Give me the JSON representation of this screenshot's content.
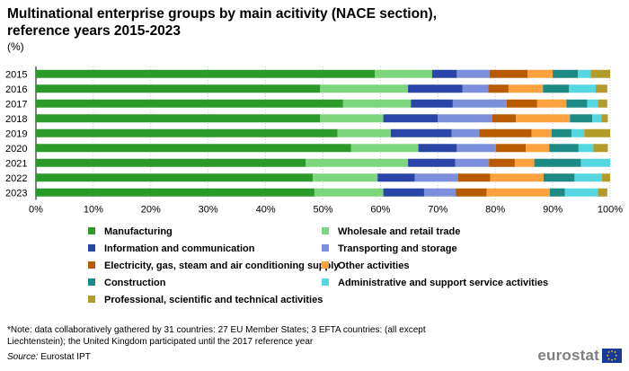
{
  "title_line1": "Multinational enterprise groups by main acitivity (NACE section),",
  "title_line2": "reference years 2015-2023",
  "unit": "(%)",
  "note_line1": "*Note: data collaboratively gathered  by  31 countries: 27 EU Member States; 3 EFTA countries: (all except",
  "note_line2": "Liechtenstein); the United Kingdom participated until the 2017 reference year",
  "source_label": "Source:",
  "source_text": "Eurostat IPT",
  "logo_text": "eurostat",
  "chart_data": {
    "type": "bar",
    "orientation": "horizontal",
    "stacked": true,
    "title": "Multinational enterprise groups by main acitivity (NACE section), reference years 2015-2023",
    "xlabel": "",
    "ylabel": "",
    "xlim": [
      0,
      100
    ],
    "x_ticks": [
      "0%",
      "10%",
      "20%",
      "30%",
      "40%",
      "50%",
      "60%",
      "70%",
      "80%",
      "90%",
      "100%"
    ],
    "categories": [
      "2015",
      "2016",
      "2017",
      "2018",
      "2019",
      "2020",
      "2021",
      "2022",
      "2023"
    ],
    "series": [
      {
        "name": "Manufacturing",
        "color": "#2a9a2a",
        "values": [
          59.0,
          49.5,
          53.5,
          49.5,
          52.5,
          54.9,
          47.0,
          48.2,
          48.5
        ]
      },
      {
        "name": "Wholesale and retail trade",
        "color": "#7dd67d",
        "values": [
          10.0,
          15.3,
          11.8,
          11.0,
          9.3,
          11.7,
          17.8,
          11.3,
          12.0
        ]
      },
      {
        "name": "Information and communication",
        "color": "#2945a8",
        "values": [
          4.3,
          9.5,
          7.3,
          9.5,
          10.6,
          6.7,
          8.2,
          6.5,
          7.1
        ]
      },
      {
        "name": "Transporting and storage",
        "color": "#7b8fdc",
        "values": [
          5.7,
          4.5,
          9.4,
          9.5,
          4.8,
          6.8,
          5.9,
          7.5,
          5.5
        ]
      },
      {
        "name": "Electricity, gas, steam and air conditioning supply",
        "color": "#b85a00",
        "values": [
          6.6,
          3.5,
          5.3,
          4.1,
          9.1,
          5.2,
          4.5,
          5.6,
          5.4
        ]
      },
      {
        "name": "Other activities",
        "color": "#fba140",
        "values": [
          4.4,
          6.0,
          5.1,
          9.4,
          3.5,
          4.1,
          3.4,
          9.3,
          11.0
        ]
      },
      {
        "name": "Construction",
        "color": "#1d8a85",
        "values": [
          4.4,
          4.5,
          3.6,
          3.9,
          3.5,
          5.1,
          8.1,
          5.4,
          2.6
        ]
      },
      {
        "name": "Administrative and support service activities",
        "color": "#55d6e0",
        "values": [
          2.2,
          4.7,
          1.9,
          1.6,
          2.2,
          2.6,
          5.1,
          4.8,
          5.8
        ]
      },
      {
        "name": "Professional, scientific and technical activities",
        "color": "#b39b29",
        "values": [
          3.4,
          2.0,
          1.6,
          1.1,
          4.5,
          2.5,
          0.0,
          1.4,
          1.6
        ]
      }
    ],
    "legend": "bottom",
    "grid": "vertical dotted"
  }
}
